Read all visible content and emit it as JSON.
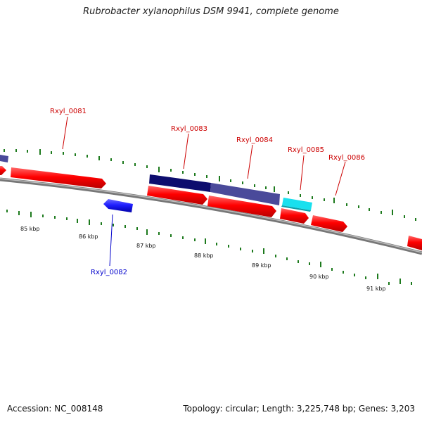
{
  "title": "Rubrobacter xylanophilus DSM 9941, complete genome",
  "footer": {
    "accession": "Accession: NC_008148",
    "summary": "Topology: circular; Length: 3,225,748 bp; Genes: 3,203"
  },
  "colors": {
    "forward_cds": "#ff0000",
    "reverse_cds": "#1f1fff",
    "backbone": "#8a8a8a",
    "ticks": "#1d7a1d",
    "label_forward": "#cc0000",
    "label_reverse": "#0000cc",
    "feature_dark": "#0d0d6e",
    "feature_slate": "#4a4a9a",
    "feature_cyan": "#18e0ee"
  },
  "scale_labels": [
    "85 kbp",
    "86 kbp",
    "87 kbp",
    "88 kbp",
    "89 kbp",
    "90 kbp",
    "91 kbp"
  ],
  "genes": [
    {
      "name": "Rxyl_0081",
      "strand": "forward"
    },
    {
      "name": "Rxyl_0082",
      "strand": "reverse"
    },
    {
      "name": "Rxyl_0083",
      "strand": "forward"
    },
    {
      "name": "Rxyl_0084",
      "strand": "forward"
    },
    {
      "name": "Rxyl_0085",
      "strand": "forward"
    },
    {
      "name": "Rxyl_0086",
      "strand": "forward"
    }
  ]
}
